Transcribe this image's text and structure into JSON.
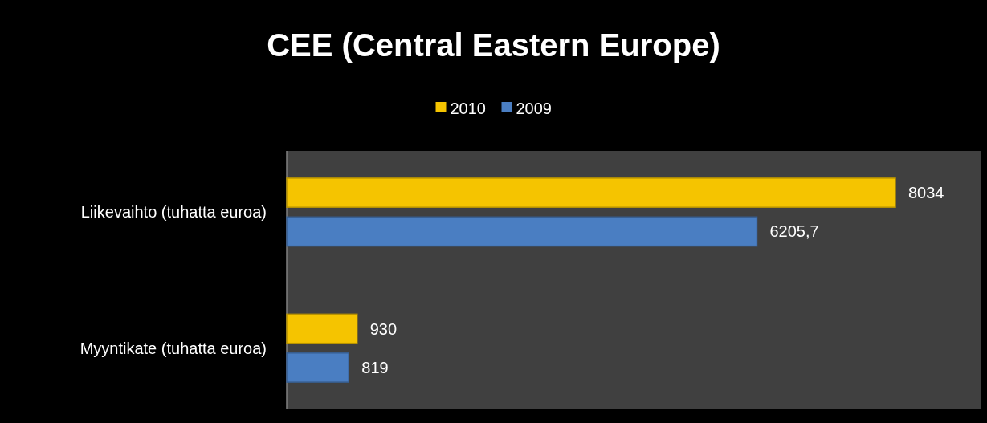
{
  "chart_data": {
    "type": "bar",
    "orientation": "horizontal",
    "title": "CEE (Central Eastern Europe)",
    "categories": [
      "Liikevaihto (tuhatta euroa)",
      "Myyntikate (tuhatta euroa)"
    ],
    "series": [
      {
        "name": "2010",
        "color": "#f5c400",
        "values": [
          8034,
          930
        ],
        "value_labels": [
          "8034",
          "930"
        ]
      },
      {
        "name": "2009",
        "color": "#4a7ec2",
        "values": [
          6205.7,
          819
        ],
        "value_labels": [
          "6205,7",
          "819"
        ]
      }
    ],
    "legend": "top",
    "grid": false
  }
}
